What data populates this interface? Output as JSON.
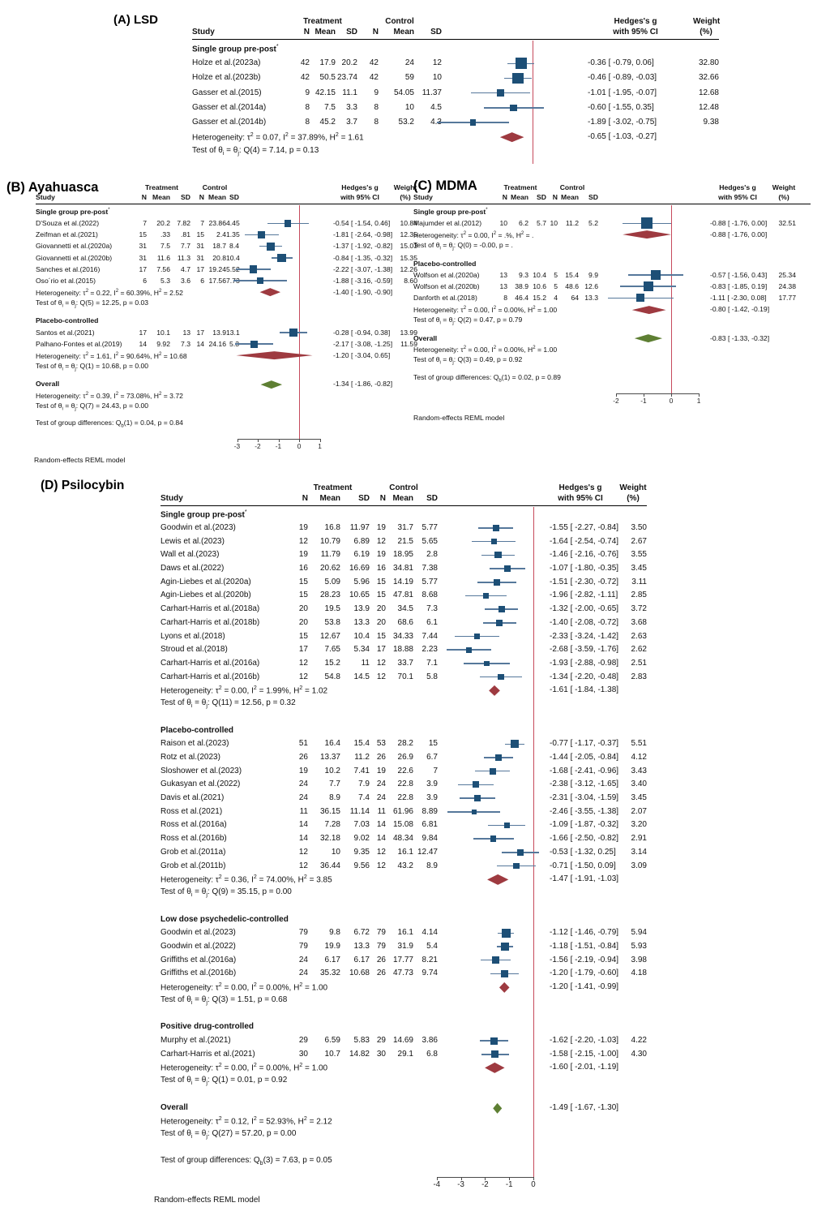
{
  "figure": {
    "type": "forest-plot-meta-analysis"
  },
  "columns": {
    "group1": "Treatment",
    "group2": "Control",
    "study": "Study",
    "n": "N",
    "mean": "Mean",
    "sd": "SD",
    "effect_line1": "Hedges's g",
    "effect_line2": "with 95% CI",
    "weight_line1": "Weight",
    "weight_line2": "(%)"
  },
  "colors": {
    "effect_square": "#1d4f76",
    "ci_line": "#56789b",
    "subgroup_diamond": "#9e3a40",
    "overall_diamond": "#5e7f33",
    "reference_line": "#c64a5c",
    "axis_line": "#4a4a4a",
    "rule_line": "#000000",
    "text": "#111111"
  },
  "row_schema": [
    "study",
    "n_treatment",
    "mean_treatment",
    "sd_treatment",
    "n_control",
    "mean_control",
    "sd_control",
    "estimate",
    "ci_lower",
    "ci_upper",
    "weight_pct"
  ],
  "chart_data": [
    {
      "id": "A",
      "type": "forest",
      "title": "(A) LSD",
      "axis_ticks": null,
      "groups": [
        {
          "label": "Single group pre-post",
          "label_sup": "*",
          "rows": [
            [
              "Holze et al.(2023a)",
              "42",
              "17.9",
              "20.2",
              "42",
              "24",
              "12",
              -0.36,
              -0.79,
              0.06,
              32.8
            ],
            [
              "Holze et al.(2023b)",
              "42",
              "50.5",
              "23.74",
              "42",
              "59",
              "10",
              -0.46,
              -0.89,
              -0.03,
              32.66
            ],
            [
              "Gasser et al.(2015)",
              "9",
              "42.15",
              "11.1",
              "9",
              "54.05",
              "11.37",
              -1.01,
              -1.95,
              -0.07,
              12.68
            ],
            [
              "Gasser et al.(2014a)",
              "8",
              "7.5",
              "3.3",
              "8",
              "10",
              "4.5",
              -0.6,
              -1.55,
              0.35,
              12.48
            ],
            [
              "Gasser et al.(2014b)",
              "8",
              "45.2",
              "3.7",
              "8",
              "53.2",
              "4.3",
              -1.89,
              -3.02,
              -0.75,
              9.38
            ]
          ],
          "heterogeneity": {
            "text": "Heterogeneity: τ² = 0.07, I² = 37.89%, H² = 1.61",
            "estimate": -0.65,
            "ci_lower": -1.03,
            "ci_upper": -0.27
          },
          "test": "Test of θi = θj: Q(4) = 7.14, p = 0.13"
        }
      ],
      "overall": null,
      "group_difference_test": null,
      "footer": null
    },
    {
      "id": "B",
      "type": "forest",
      "title": "(B) Ayahuasca",
      "axis_ticks": [
        -3,
        -2,
        -1,
        0,
        1
      ],
      "groups": [
        {
          "label": "Single group pre-post",
          "label_sup": "*",
          "rows": [
            [
              "D'Souza et al.(2022)",
              "7",
              "20.2",
              "7.82",
              "7",
              "23.86",
              "4.45",
              -0.54,
              -1.54,
              0.46,
              10.84
            ],
            [
              "Zeifman et al.(2021)",
              "15",
              ".33",
              ".81",
              "15",
              "2.4",
              "1.35",
              -1.81,
              -2.64,
              -0.98,
              12.35
            ],
            [
              "Giovannetti et al.(2020a)",
              "31",
              "7.5",
              "7.7",
              "31",
              "18.7",
              "8.4",
              -1.37,
              -1.92,
              -0.82,
              15.03
            ],
            [
              "Giovannetti et al.(2020b)",
              "31",
              "11.6",
              "11.3",
              "31",
              "20.8",
              "10.4",
              -0.84,
              -1.35,
              -0.32,
              15.35
            ],
            [
              "Sanches et al.(2016)",
              "17",
              "7.56",
              "4.7",
              "17",
              "19.24",
              "5.52",
              -2.22,
              -3.07,
              -1.38,
              12.26
            ],
            [
              "Oso´rio et al.(2015)",
              "6",
              "5.3",
              "3.6",
              "6",
              "17.56",
              "7.73",
              -1.88,
              -3.16,
              -0.59,
              8.6
            ]
          ],
          "heterogeneity": {
            "text": "Heterogeneity: τ² = 0.22, I² = 60.39%, H² = 2.52",
            "estimate": -1.4,
            "ci_lower": -1.9,
            "ci_upper": -0.9
          },
          "test": "Test of θi = θj: Q(5) = 12.25, p = 0.03"
        },
        {
          "label": "Placebo-controlled",
          "label_sup": null,
          "rows": [
            [
              "Santos et al.(2021)",
              "17",
              "10.1",
              "13",
              "17",
              "13.9",
              "13.1",
              -0.28,
              -0.94,
              0.38,
              13.99
            ],
            [
              "Palhano-Fontes et al.(2019)",
              "14",
              "9.92",
              "7.3",
              "14",
              "24.16",
              "5.3",
              -2.17,
              -3.08,
              -1.25,
              11.59
            ]
          ],
          "heterogeneity": {
            "text": "Heterogeneity: τ² = 1.61, I² = 90.64%, H² = 10.68",
            "estimate": -1.2,
            "ci_lower": -3.04,
            "ci_upper": 0.65
          },
          "test": "Test of θi = θj: Q(1) = 10.68, p = 0.00"
        }
      ],
      "overall": {
        "label": "Overall",
        "estimate": -1.34,
        "ci_lower": -1.86,
        "ci_upper": -0.82,
        "heterogeneity": "Heterogeneity: τ² = 0.39, I² = 73.08%, H² = 3.72",
        "test": "Test of θi = θj: Q(7) = 24.43, p = 0.00"
      },
      "group_difference_test": "Test of group differences: Qb(1) = 0.04, p = 0.84",
      "footer": "Random-effects REML model"
    },
    {
      "id": "C",
      "type": "forest",
      "title": "(C) MDMA",
      "axis_ticks": [
        -2,
        -1,
        0,
        1
      ],
      "groups": [
        {
          "label": "Single group pre-post",
          "label_sup": "*",
          "rows": [
            [
              "Majumder et al.(2012)",
              "10",
              "6.2",
              "5.7",
              "10",
              "11.2",
              "5.2",
              -0.88,
              -1.76,
              0.0,
              32.51
            ]
          ],
          "heterogeneity": {
            "text": "Heterogeneity: τ² = 0.00, I² = .%, H² = .",
            "estimate": -0.88,
            "ci_lower": -1.76,
            "ci_upper": 0.0
          },
          "test": "Test of θi = θj: Q(0) = -0.00, p = ."
        },
        {
          "label": "Placebo-controlled",
          "label_sup": null,
          "rows": [
            [
              "Wolfson et al.(2020a)",
              "13",
              "9.3",
              "10.4",
              "5",
              "15.4",
              "9.9",
              -0.57,
              -1.56,
              0.43,
              25.34
            ],
            [
              "Wolfson et al.(2020b)",
              "13",
              "38.9",
              "10.6",
              "5",
              "48.6",
              "12.6",
              -0.83,
              -1.85,
              0.19,
              24.38
            ],
            [
              "Danforth et al.(2018)",
              "8",
              "46.4",
              "15.2",
              "4",
              "64",
              "13.3",
              -1.11,
              -2.3,
              0.08,
              17.77
            ]
          ],
          "heterogeneity": {
            "text": "Heterogeneity: τ² = 0.00, I² = 0.00%, H² = 1.00",
            "estimate": -0.8,
            "ci_lower": -1.42,
            "ci_upper": -0.19
          },
          "test": "Test of θi = θj: Q(2) = 0.47, p = 0.79"
        }
      ],
      "overall": {
        "label": "Overall",
        "estimate": -0.83,
        "ci_lower": -1.33,
        "ci_upper": -0.32,
        "heterogeneity": "Heterogeneity: τ² = 0.00, I² = 0.00%, H² = 1.00",
        "test": "Test of θi = θj: Q(3) = 0.49, p = 0.92"
      },
      "group_difference_test": "Test of group differences: Qb(1) = 0.02, p = 0.89",
      "footer": "Random-effects REML model"
    },
    {
      "id": "D",
      "type": "forest",
      "title": "(D) Psilocybin",
      "axis_ticks": [
        -4,
        -3,
        -2,
        -1,
        0
      ],
      "groups": [
        {
          "label": "Single group pre-post",
          "label_sup": "*",
          "rows": [
            [
              "Goodwin et al.(2023)",
              "19",
              "16.8",
              "11.97",
              "19",
              "31.7",
              "5.77",
              -1.55,
              -2.27,
              -0.84,
              3.5
            ],
            [
              "Lewis et al.(2023)",
              "12",
              "10.79",
              "6.89",
              "12",
              "21.5",
              "5.65",
              -1.64,
              -2.54,
              -0.74,
              2.67
            ],
            [
              "Wall et al.(2023)",
              "19",
              "11.79",
              "6.19",
              "19",
              "18.95",
              "2.8",
              -1.46,
              -2.16,
              -0.76,
              3.55
            ],
            [
              "Daws et al.(2022)",
              "16",
              "20.62",
              "16.69",
              "16",
              "34.81",
              "7.38",
              -1.07,
              -1.8,
              -0.35,
              3.45
            ],
            [
              "Agin-Liebes et al.(2020a)",
              "15",
              "5.09",
              "5.96",
              "15",
              "14.19",
              "5.77",
              -1.51,
              -2.3,
              -0.72,
              3.11
            ],
            [
              "Agin-Liebes et al.(2020b)",
              "15",
              "28.23",
              "10.65",
              "15",
              "47.81",
              "8.68",
              -1.96,
              -2.82,
              -1.11,
              2.85
            ],
            [
              "Carhart-Harris et al.(2018a)",
              "20",
              "19.5",
              "13.9",
              "20",
              "34.5",
              "7.3",
              -1.32,
              -2.0,
              -0.65,
              3.72
            ],
            [
              "Carhart-Harris et al.(2018b)",
              "20",
              "53.8",
              "13.3",
              "20",
              "68.6",
              "6.1",
              -1.4,
              -2.08,
              -0.72,
              3.68
            ],
            [
              "Lyons et al.(2018)",
              "15",
              "12.67",
              "10.4",
              "15",
              "34.33",
              "7.44",
              -2.33,
              -3.24,
              -1.42,
              2.63
            ],
            [
              "Stroud et al.(2018)",
              "17",
              "7.65",
              "5.34",
              "17",
              "18.88",
              "2.23",
              -2.68,
              -3.59,
              -1.76,
              2.62
            ],
            [
              "Carhart-Harris et al.(2016a)",
              "12",
              "15.2",
              "11",
              "12",
              "33.7",
              "7.1",
              -1.93,
              -2.88,
              -0.98,
              2.51
            ],
            [
              "Carhart-Harris et al.(2016b)",
              "12",
              "54.8",
              "14.5",
              "12",
              "70.1",
              "5.8",
              -1.34,
              -2.2,
              -0.48,
              2.83
            ]
          ],
          "heterogeneity": {
            "text": "Heterogeneity: τ² = 0.00, I² = 1.99%, H² = 1.02",
            "estimate": -1.61,
            "ci_lower": -1.84,
            "ci_upper": -1.38
          },
          "test": "Test of θi = θj: Q(11) = 12.56, p = 0.32"
        },
        {
          "label": "Placebo-controlled",
          "label_sup": null,
          "rows": [
            [
              "Raison et al.(2023)",
              "51",
              "16.4",
              "15.4",
              "53",
              "28.2",
              "15",
              -0.77,
              -1.17,
              -0.37,
              5.51
            ],
            [
              "Rotz et al.(2023)",
              "26",
              "13.37",
              "11.2",
              "26",
              "26.9",
              "6.7",
              -1.44,
              -2.05,
              -0.84,
              4.12
            ],
            [
              "Sloshower et al.(2023)",
              "19",
              "10.2",
              "7.41",
              "19",
              "22.6",
              "7",
              -1.68,
              -2.41,
              -0.96,
              3.43
            ],
            [
              "Gukasyan et al.(2022)",
              "24",
              "7.7",
              "7.9",
              "24",
              "22.8",
              "3.9",
              -2.38,
              -3.12,
              -1.65,
              3.4
            ],
            [
              "Davis et al.(2021)",
              "24",
              "8.9",
              "7.4",
              "24",
              "22.8",
              "3.9",
              -2.31,
              -3.04,
              -1.59,
              3.45
            ],
            [
              "Ross et al.(2021)",
              "11",
              "36.15",
              "11.14",
              "11",
              "61.96",
              "8.89",
              -2.46,
              -3.55,
              -1.38,
              2.07
            ],
            [
              "Ross et al.(2016a)",
              "14",
              "7.28",
              "7.03",
              "14",
              "15.08",
              "6.81",
              -1.09,
              -1.87,
              -0.32,
              3.2
            ],
            [
              "Ross et al.(2016b)",
              "14",
              "32.18",
              "9.02",
              "14",
              "48.34",
              "9.84",
              -1.66,
              -2.5,
              -0.82,
              2.91
            ],
            [
              "Grob et al.(2011a)",
              "12",
              "10",
              "9.35",
              "12",
              "16.1",
              "12.47",
              -0.53,
              -1.32,
              0.25,
              3.14
            ],
            [
              "Grob et al.(2011b)",
              "12",
              "36.44",
              "9.56",
              "12",
              "43.2",
              "8.9",
              -0.71,
              -1.5,
              0.09,
              3.09
            ]
          ],
          "heterogeneity": {
            "text": "Heterogeneity: τ² = 0.36, I² = 74.00%, H² = 3.85",
            "estimate": -1.47,
            "ci_lower": -1.91,
            "ci_upper": -1.03
          },
          "test": "Test of θi = θj: Q(9) = 35.15, p = 0.00"
        },
        {
          "label": "Low dose psychedelic-controlled",
          "label_sup": null,
          "rows": [
            [
              "Goodwin et al.(2023)",
              "79",
              "9.8",
              "6.72",
              "79",
              "16.1",
              "4.14",
              -1.12,
              -1.46,
              -0.79,
              5.94
            ],
            [
              "Goodwin et al.(2022)",
              "79",
              "19.9",
              "13.3",
              "79",
              "31.9",
              "5.4",
              -1.18,
              -1.51,
              -0.84,
              5.93
            ],
            [
              "Griffiths et al.(2016a)",
              "24",
              "6.17",
              "6.17",
              "26",
              "17.77",
              "8.21",
              -1.56,
              -2.19,
              -0.94,
              3.98
            ],
            [
              "Griffiths et al.(2016b)",
              "24",
              "35.32",
              "10.68",
              "26",
              "47.73",
              "9.74",
              -1.2,
              -1.79,
              -0.6,
              4.18
            ]
          ],
          "heterogeneity": {
            "text": "Heterogeneity: τ² = 0.00, I² = 0.00%, H² = 1.00",
            "estimate": -1.2,
            "ci_lower": -1.41,
            "ci_upper": -0.99
          },
          "test": "Test of θi = θj: Q(3) = 1.51, p = 0.68"
        },
        {
          "label": "Positive drug-controlled",
          "label_sup": null,
          "rows": [
            [
              "Murphy et al.(2021)",
              "29",
              "6.59",
              "5.83",
              "29",
              "14.69",
              "3.86",
              -1.62,
              -2.2,
              -1.03,
              4.22
            ],
            [
              "Carhart-Harris et al.(2021)",
              "30",
              "10.7",
              "14.82",
              "30",
              "29.1",
              "6.8",
              -1.58,
              -2.15,
              -1.0,
              4.3
            ]
          ],
          "heterogeneity": {
            "text": "Heterogeneity: τ² = 0.00, I² = 0.00%, H² = 1.00",
            "estimate": -1.6,
            "ci_lower": -2.01,
            "ci_upper": -1.19
          },
          "test": "Test of θi = θj: Q(1) = 0.01, p = 0.92"
        }
      ],
      "overall": {
        "label": "Overall",
        "estimate": -1.49,
        "ci_lower": -1.67,
        "ci_upper": -1.3,
        "heterogeneity": "Heterogeneity: τ² = 0.12, I² = 52.93%, H² = 2.12",
        "test": "Test of θi = θj: Q(27) = 57.20, p = 0.00"
      },
      "group_difference_test": "Test of group differences: Qb(3) = 7.63, p = 0.05",
      "footer": "Random-effects REML model"
    }
  ]
}
